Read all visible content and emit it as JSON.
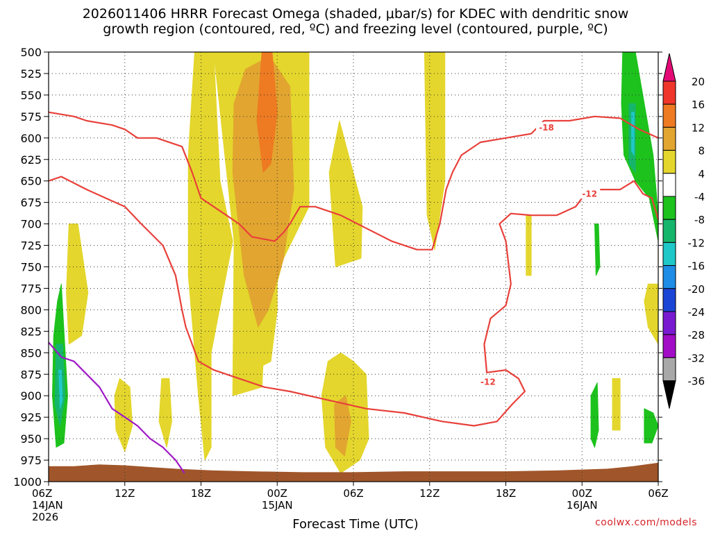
{
  "title_line1": "2026011406 HRRR Forecast Omega (shaded, μbar/s) for KDEC with dendritic snow",
  "title_line2": "growth region (contoured, red, ºC) and freezing level (contoured, purple, ºC)",
  "credit": "coolwx.com/models",
  "chart_data": {
    "type": "time-height contour",
    "xlabel": "Forecast Time (UTC)",
    "x_range_hours": [
      0,
      48
    ],
    "x_ticks": [
      {
        "hour": 0,
        "lines": [
          "06Z",
          "14JAN",
          "2026"
        ]
      },
      {
        "hour": 6,
        "lines": [
          "12Z"
        ]
      },
      {
        "hour": 12,
        "lines": [
          "18Z"
        ]
      },
      {
        "hour": 18,
        "lines": [
          "00Z",
          "15JAN"
        ]
      },
      {
        "hour": 24,
        "lines": [
          "06Z"
        ]
      },
      {
        "hour": 30,
        "lines": [
          "12Z"
        ]
      },
      {
        "hour": 36,
        "lines": [
          "18Z"
        ]
      },
      {
        "hour": 42,
        "lines": [
          "00Z",
          "16JAN"
        ]
      },
      {
        "hour": 48,
        "lines": [
          "06Z"
        ]
      }
    ],
    "y_ticks_hPa": [
      500,
      525,
      550,
      575,
      600,
      625,
      650,
      675,
      700,
      725,
      750,
      775,
      800,
      825,
      850,
      875,
      900,
      925,
      950,
      975,
      1000
    ],
    "y_range_hPa": [
      500,
      1000
    ],
    "grid": true,
    "colorbar": {
      "labels": [
        "20",
        "16",
        "12",
        "8",
        "4",
        "-4",
        "-8",
        "-12",
        "-16",
        "-20",
        "-24",
        "-28",
        "-32",
        "-36"
      ],
      "colors": [
        "#e30a76",
        "#f0362a",
        "#ee7a22",
        "#e2a530",
        "#e4d62c",
        "#ffffff",
        "#1dc21d",
        "#16b56c",
        "#1fc8c8",
        "#1d8de6",
        "#1b45d5",
        "#7a1ad0",
        "#a20cc6",
        "#a8a8a8",
        "#000000"
      ]
    },
    "omega_regions": [
      {
        "level": 4,
        "color": "#e4d62c",
        "points": [
          [
            11.5,
            500
          ],
          [
            13,
            500
          ],
          [
            13.5,
            650
          ],
          [
            14.5,
            720
          ],
          [
            12.8,
            850
          ],
          [
            12.8,
            960
          ],
          [
            12.3,
            975
          ],
          [
            11.8,
            900
          ],
          [
            11,
            760
          ],
          [
            11,
            620
          ]
        ]
      },
      {
        "level": 4,
        "color": "#e4d62c",
        "points": [
          [
            13,
            500
          ],
          [
            20.5,
            500
          ],
          [
            20.5,
            680
          ],
          [
            18.5,
            740
          ],
          [
            17,
            825
          ],
          [
            16.8,
            890
          ],
          [
            14.5,
            900
          ],
          [
            14.6,
            720
          ]
        ]
      },
      {
        "level": 4,
        "color": "#e4d62c",
        "points": [
          [
            16.3,
            500
          ],
          [
            18,
            500
          ],
          [
            18,
            800
          ],
          [
            17.5,
            860
          ],
          [
            16.2,
            870
          ]
        ]
      },
      {
        "level": 4,
        "color": "#e4d62c",
        "points": [
          [
            22.9,
            580
          ],
          [
            24.7,
            680
          ],
          [
            24.6,
            740
          ],
          [
            22.6,
            750
          ],
          [
            22.1,
            640
          ]
        ]
      },
      {
        "level": 4,
        "color": "#e4d62c",
        "points": [
          [
            22,
            860
          ],
          [
            23,
            850
          ],
          [
            24,
            860
          ],
          [
            25,
            875
          ],
          [
            25.2,
            950
          ],
          [
            24.5,
            975
          ],
          [
            23,
            990
          ],
          [
            21.8,
            960
          ],
          [
            21.5,
            900
          ]
        ]
      },
      {
        "level": 4,
        "color": "#e4d62c",
        "points": [
          [
            29.6,
            500
          ],
          [
            31.2,
            500
          ],
          [
            31.2,
            650
          ],
          [
            30.4,
            730
          ],
          [
            29.8,
            690
          ]
        ]
      },
      {
        "level": 4,
        "color": "#e4d62c",
        "points": [
          [
            1.6,
            700
          ],
          [
            2.3,
            700
          ],
          [
            3.1,
            780
          ],
          [
            2.6,
            830
          ],
          [
            1.6,
            840
          ],
          [
            1.4,
            780
          ]
        ]
      },
      {
        "level": 4,
        "color": "#e4d62c",
        "points": [
          [
            5.6,
            880
          ],
          [
            6.4,
            890
          ],
          [
            6.6,
            935
          ],
          [
            6,
            965
          ],
          [
            5.3,
            940
          ],
          [
            5.2,
            900
          ]
        ]
      },
      {
        "level": 4,
        "color": "#e4d62c",
        "points": [
          [
            8.9,
            880
          ],
          [
            9.5,
            880
          ],
          [
            9.7,
            930
          ],
          [
            9.3,
            960
          ],
          [
            8.7,
            930
          ]
        ]
      },
      {
        "level": 4,
        "color": "#e4d62c",
        "points": [
          [
            37.6,
            690
          ],
          [
            38,
            690
          ],
          [
            38,
            760
          ],
          [
            37.6,
            760
          ]
        ]
      },
      {
        "level": 4,
        "color": "#e4d62c",
        "points": [
          [
            47.2,
            770
          ],
          [
            48,
            770
          ],
          [
            48,
            840
          ],
          [
            47.2,
            820
          ],
          [
            46.9,
            790
          ]
        ]
      },
      {
        "level": 4,
        "color": "#e4d62c",
        "points": [
          [
            44.4,
            880
          ],
          [
            45,
            880
          ],
          [
            45,
            940
          ],
          [
            44.4,
            940
          ]
        ]
      },
      {
        "level": 8,
        "color": "#e2a530",
        "points": [
          [
            15.5,
            520
          ],
          [
            17.4,
            505
          ],
          [
            19,
            540
          ],
          [
            19.3,
            660
          ],
          [
            18.5,
            740
          ],
          [
            17.3,
            800
          ],
          [
            16.5,
            820
          ],
          [
            15.4,
            760
          ],
          [
            14.5,
            640
          ],
          [
            14.6,
            560
          ]
        ]
      },
      {
        "level": 8,
        "color": "#e2a530",
        "points": [
          [
            22.5,
            910
          ],
          [
            23.4,
            900
          ],
          [
            23.8,
            930
          ],
          [
            23.3,
            970
          ],
          [
            22.6,
            960
          ]
        ]
      },
      {
        "level": 12,
        "color": "#ee7a22",
        "points": [
          [
            16.8,
            500
          ],
          [
            17.6,
            500
          ],
          [
            18,
            570
          ],
          [
            17.5,
            630
          ],
          [
            16.9,
            640
          ],
          [
            16.4,
            580
          ]
        ]
      },
      {
        "level": -4,
        "color": "#1dc21d",
        "points": [
          [
            45.2,
            500
          ],
          [
            46.2,
            500
          ],
          [
            46.9,
            560
          ],
          [
            47.6,
            620
          ],
          [
            48,
            690
          ],
          [
            48,
            720
          ],
          [
            47.3,
            670
          ],
          [
            46.2,
            650
          ],
          [
            45.3,
            620
          ],
          [
            45.1,
            560
          ]
        ]
      },
      {
        "level": -4,
        "color": "#1dc21d",
        "points": [
          [
            0.4,
            830
          ],
          [
            0.7,
            790
          ],
          [
            1,
            770
          ],
          [
            1.5,
            900
          ],
          [
            1.2,
            955
          ],
          [
            0.6,
            960
          ],
          [
            0.3,
            900
          ]
        ]
      },
      {
        "level": -4,
        "color": "#1dc21d",
        "points": [
          [
            43,
            700
          ],
          [
            43.3,
            700
          ],
          [
            43.4,
            750
          ],
          [
            43.1,
            760
          ]
        ]
      },
      {
        "level": -4,
        "color": "#1dc21d",
        "points": [
          [
            42.7,
            900
          ],
          [
            43.2,
            885
          ],
          [
            43.3,
            940
          ],
          [
            43,
            960
          ],
          [
            42.7,
            950
          ]
        ]
      },
      {
        "level": -4,
        "color": "#1dc21d",
        "points": [
          [
            46.9,
            915
          ],
          [
            47.6,
            920
          ],
          [
            48,
            935
          ],
          [
            47.5,
            955
          ],
          [
            46.9,
            955
          ]
        ]
      },
      {
        "level": -8,
        "color": "#16b56c",
        "points": [
          [
            0.6,
            840
          ],
          [
            1.1,
            840
          ],
          [
            1.3,
            900
          ],
          [
            0.9,
            935
          ],
          [
            0.5,
            910
          ]
        ]
      },
      {
        "level": -8,
        "color": "#16b56c",
        "points": [
          [
            45.7,
            560
          ],
          [
            46.2,
            560
          ],
          [
            46.2,
            640
          ],
          [
            45.7,
            630
          ]
        ]
      },
      {
        "level": -12,
        "color": "#1fc8c8",
        "points": [
          [
            0.8,
            870
          ],
          [
            1,
            870
          ],
          [
            1.1,
            905
          ],
          [
            0.9,
            915
          ]
        ]
      },
      {
        "level": -12,
        "color": "#1fc8c8",
        "points": [
          [
            45.9,
            570
          ],
          [
            46.1,
            570
          ],
          [
            46.1,
            620
          ],
          [
            45.9,
            615
          ]
        ]
      }
    ],
    "dgz_contours": [
      {
        "value": -18,
        "color": "#e8403a",
        "points": [
          [
            0,
            570
          ],
          [
            2,
            575
          ],
          [
            3,
            580
          ],
          [
            5,
            585
          ],
          [
            6,
            590
          ],
          [
            7,
            600
          ],
          [
            8.5,
            600
          ],
          [
            10.5,
            610
          ],
          [
            11.3,
            640
          ],
          [
            12,
            670
          ],
          [
            13,
            680
          ],
          [
            14,
            690
          ],
          [
            15,
            700
          ],
          [
            16,
            715
          ],
          [
            17.8,
            720
          ],
          [
            18.5,
            710
          ],
          [
            19,
            700
          ],
          [
            19.8,
            680
          ],
          [
            21,
            680
          ],
          [
            23,
            690
          ],
          [
            25,
            705
          ],
          [
            27,
            720
          ],
          [
            29,
            730
          ],
          [
            30.2,
            730
          ],
          [
            30.8,
            700
          ],
          [
            31.3,
            660
          ],
          [
            31.8,
            640
          ],
          [
            32.5,
            620
          ],
          [
            34,
            605
          ],
          [
            36,
            600
          ],
          [
            38,
            595
          ],
          [
            39,
            580
          ],
          [
            41,
            580
          ],
          [
            43,
            575
          ],
          [
            45,
            577
          ],
          [
            46.5,
            590
          ],
          [
            48,
            600
          ]
        ]
      },
      {
        "value": -12,
        "color": "#e8403a",
        "points": [
          [
            0,
            650
          ],
          [
            1,
            645
          ],
          [
            3,
            660
          ],
          [
            4.5,
            670
          ],
          [
            6,
            680
          ],
          [
            7.3,
            700
          ],
          [
            9,
            725
          ],
          [
            10,
            760
          ],
          [
            10.5,
            800
          ],
          [
            10.8,
            820
          ],
          [
            11.8,
            860
          ],
          [
            13,
            870
          ],
          [
            15,
            880
          ],
          [
            17,
            890
          ],
          [
            19,
            895
          ],
          [
            22,
            905
          ],
          [
            25,
            915
          ],
          [
            28,
            920
          ],
          [
            31,
            930
          ],
          [
            33.5,
            935
          ],
          [
            35.3,
            930
          ],
          [
            36.5,
            910
          ],
          [
            37.5,
            895
          ],
          [
            37,
            880
          ],
          [
            36,
            870
          ],
          [
            34.5,
            873
          ],
          [
            34.3,
            840
          ],
          [
            34.8,
            810
          ],
          [
            36,
            795
          ],
          [
            36.4,
            770
          ],
          [
            36,
            720
          ],
          [
            35.5,
            700
          ],
          [
            36.4,
            688
          ],
          [
            38,
            690
          ],
          [
            40,
            690
          ],
          [
            41.5,
            680
          ],
          [
            42.5,
            660
          ],
          [
            45,
            660
          ],
          [
            46.1,
            650
          ],
          [
            46.8,
            665
          ],
          [
            47.5,
            670
          ],
          [
            48,
            695
          ]
        ]
      },
      {
        "value": 0,
        "color": "#9f18c6",
        "points": [
          [
            0,
            838
          ],
          [
            1,
            855
          ],
          [
            2,
            860
          ],
          [
            3,
            875
          ],
          [
            4,
            890
          ],
          [
            5,
            915
          ],
          [
            6,
            925
          ],
          [
            7,
            935
          ],
          [
            8,
            950
          ],
          [
            9,
            960
          ],
          [
            10,
            975
          ],
          [
            10.7,
            990
          ]
        ]
      }
    ],
    "contour_labels": [
      {
        "text": "-18",
        "hour": 39.2,
        "hPa": 588
      },
      {
        "text": "-12",
        "hour": 42.6,
        "hPa": 665
      },
      {
        "text": "-12",
        "hour": 34.6,
        "hPa": 884
      }
    ],
    "terrain": {
      "color": "#a0562a",
      "points": [
        [
          0,
          982
        ],
        [
          2,
          982
        ],
        [
          4,
          980
        ],
        [
          6,
          981
        ],
        [
          8,
          983
        ],
        [
          10,
          985
        ],
        [
          13,
          987
        ],
        [
          16,
          988
        ],
        [
          20,
          989
        ],
        [
          24,
          989
        ],
        [
          28,
          988
        ],
        [
          32,
          988
        ],
        [
          36,
          988
        ],
        [
          40,
          987
        ],
        [
          44,
          985
        ],
        [
          46,
          982
        ],
        [
          48,
          978
        ]
      ]
    }
  }
}
